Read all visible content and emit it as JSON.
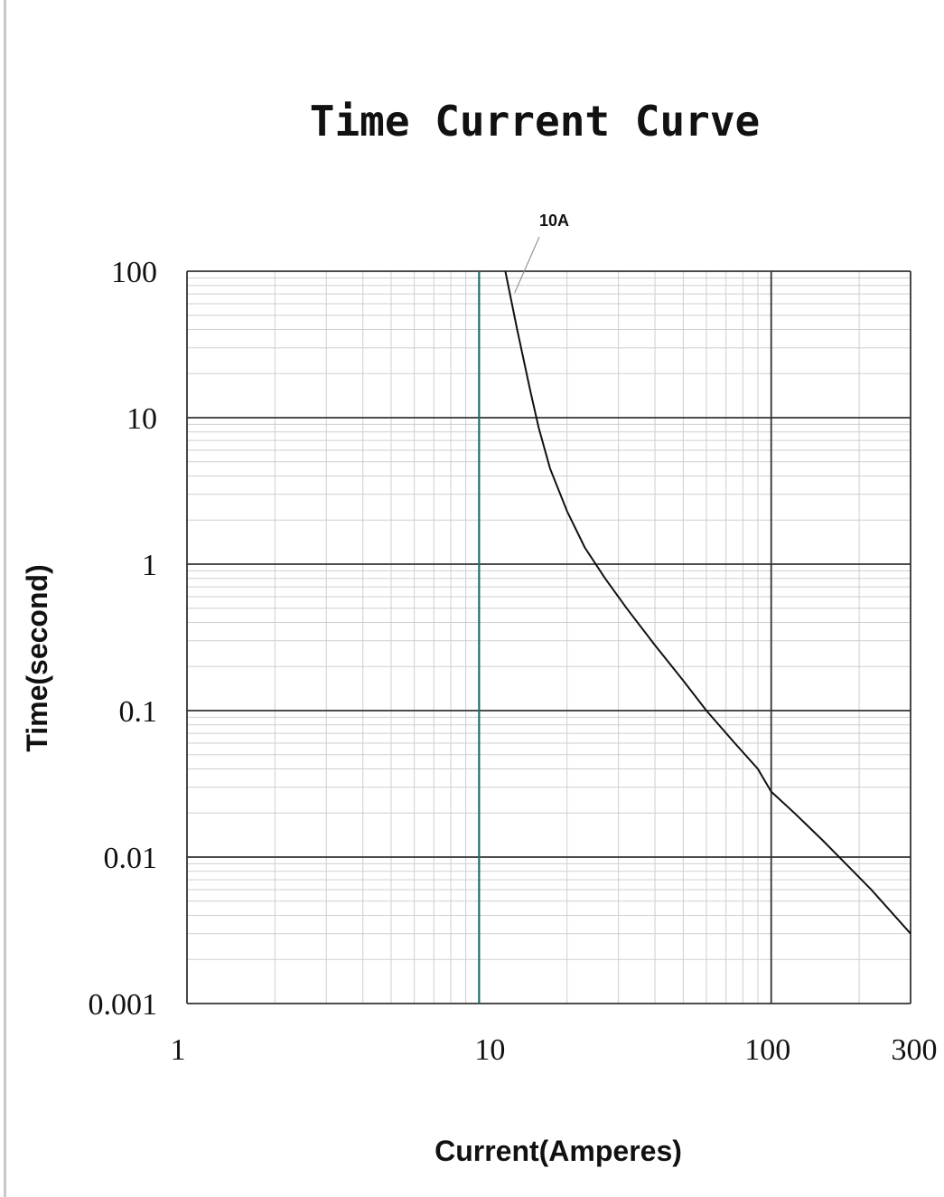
{
  "chart_data": {
    "type": "line",
    "title": "Time Current Curve",
    "xlabel": "Current(Amperes)",
    "ylabel": "Time(second)",
    "x_scale": "log",
    "y_scale": "log",
    "xlim": [
      1,
      300
    ],
    "ylim": [
      0.001,
      100
    ],
    "x_ticks": [
      {
        "value": 1,
        "label": "1"
      },
      {
        "value": 10,
        "label": "10"
      },
      {
        "value": 100,
        "label": "100"
      },
      {
        "value": 300,
        "label": "300"
      }
    ],
    "y_ticks": [
      {
        "value": 100,
        "label": "100"
      },
      {
        "value": 10,
        "label": "10"
      },
      {
        "value": 1,
        "label": "1"
      },
      {
        "value": 0.1,
        "label": "0.1"
      },
      {
        "value": 0.01,
        "label": "0.01"
      },
      {
        "value": 0.001,
        "label": "0.001"
      }
    ],
    "grid": true,
    "highlight_x": {
      "value": 10,
      "color": "#1f6f6a"
    },
    "annotations": [
      {
        "text": "10A",
        "target_x": 12.5,
        "target_y": 100
      }
    ],
    "series": [
      {
        "name": "10A",
        "color": "#111111",
        "x": [
          12.3,
          13.5,
          15,
          16,
          17.5,
          20,
          23,
          27,
          32,
          40,
          50,
          60,
          75,
          90,
          100,
          120,
          150,
          180,
          220,
          300
        ],
        "y": [
          100,
          40,
          15,
          8.5,
          4.5,
          2.3,
          1.3,
          0.8,
          0.5,
          0.28,
          0.16,
          0.1,
          0.06,
          0.04,
          0.028,
          0.02,
          0.013,
          0.009,
          0.006,
          0.003
        ]
      }
    ]
  }
}
